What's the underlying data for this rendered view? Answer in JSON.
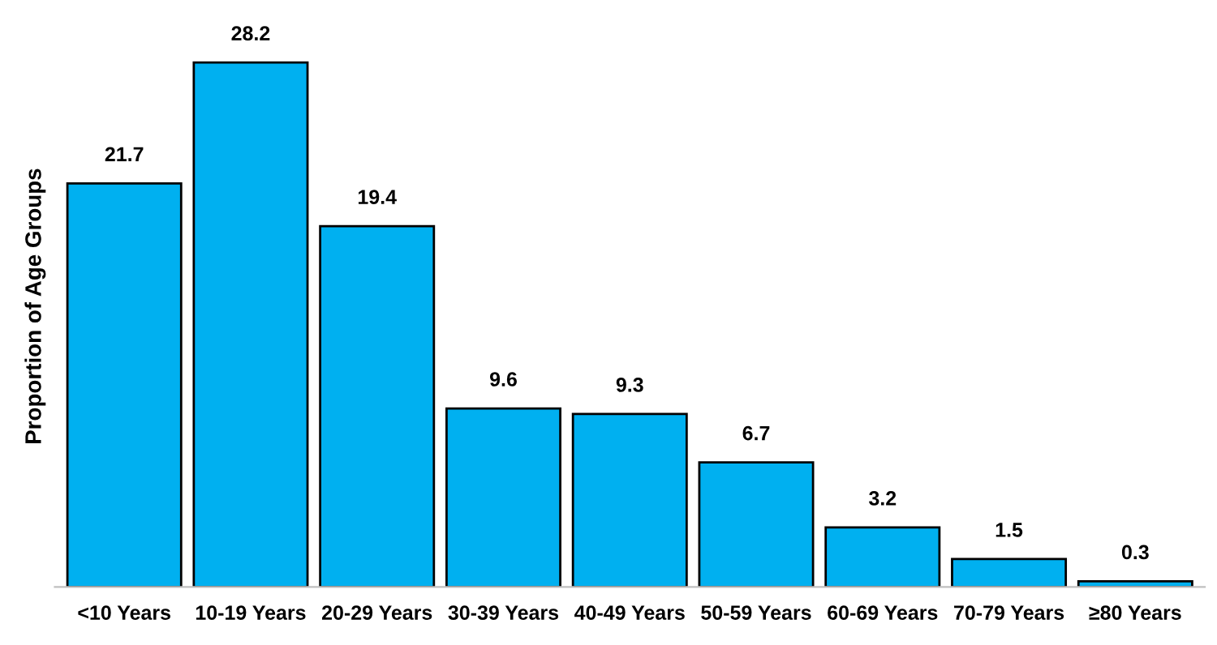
{
  "chart_data": {
    "type": "bar",
    "ylabel": "Proportion of Age Groups",
    "categories": [
      "<10 Years",
      "10-19 Years",
      "20-29 Years",
      "30-39 Years",
      "40-49 Years",
      "50-59 Years",
      "60-69 Years",
      "70-79 Years",
      "≥80 Years"
    ],
    "values": [
      21.7,
      28.2,
      19.4,
      9.6,
      9.3,
      6.7,
      3.2,
      1.5,
      0.3
    ],
    "color": "#00b0f0",
    "data_labels": true,
    "grid": false,
    "legend": false
  }
}
